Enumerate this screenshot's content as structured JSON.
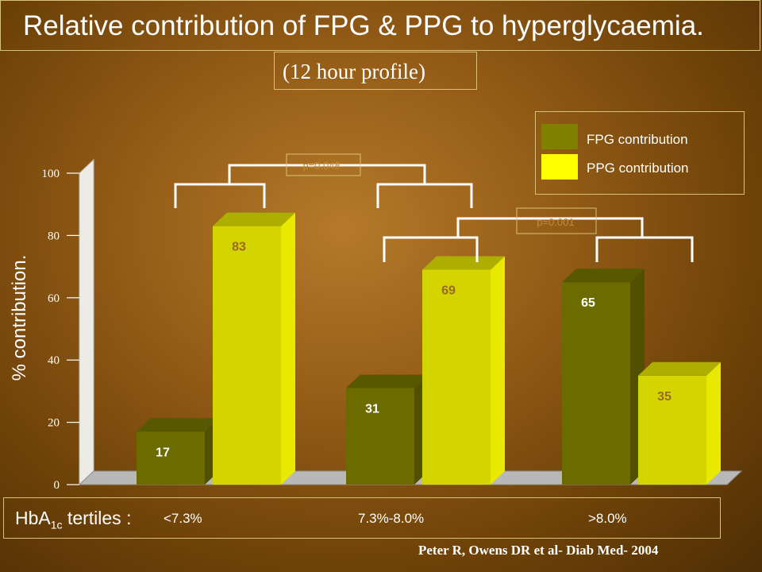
{
  "slide": {
    "title": "Relative contribution of FPG & PPG to hyperglycaemia.",
    "subtitle": "(12 hour profile)",
    "citation": "Peter R, Owens DR et al- Diab Med- 2004",
    "hba1c_label_main": "HbA",
    "hba1c_label_sub": "1c",
    "hba1c_label_suffix": " tertiles :"
  },
  "colors": {
    "fpg": "#6b6b00",
    "ppg": "#d4d400",
    "ppg_legend": "#ffff00",
    "fpg_legend": "#808000"
  },
  "chart_data": {
    "type": "bar",
    "categories": [
      "<7.3%",
      "7.3%-8.0%",
      ">8.0%"
    ],
    "series": [
      {
        "name": "FPG contribution",
        "values": [
          17,
          31,
          65
        ]
      },
      {
        "name": "PPG contribution",
        "values": [
          83,
          69,
          35
        ]
      }
    ],
    "ylabel": "% contribution.",
    "ylim": [
      0,
      100
    ],
    "yticks": [
      "0",
      "20",
      "40",
      "60",
      "80",
      "100"
    ],
    "annotations": [
      "p=0.048",
      "p=0.001"
    ],
    "legend_position": "top-right"
  }
}
